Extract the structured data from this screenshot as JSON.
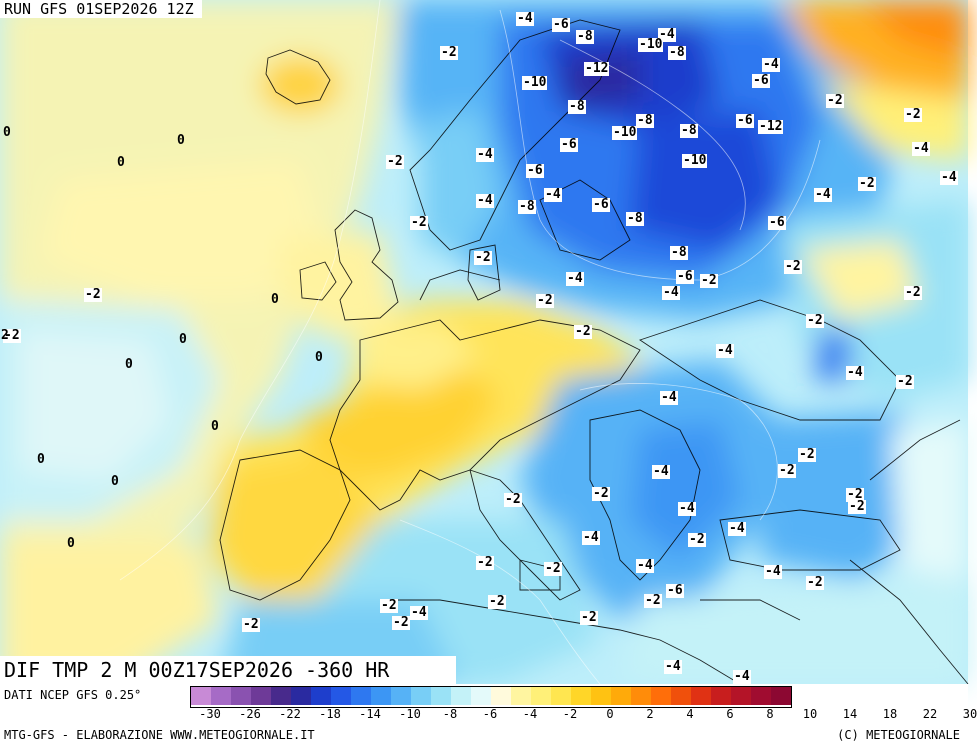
{
  "header": {
    "run": "RUN GFS 01SEP2026 12Z"
  },
  "title": "DIF TMP 2 M 00Z17SEP2026 -360 HR",
  "footer": {
    "data_source": "DATI NCEP GFS 0.25°",
    "credit_left": "MTG-GFS - ELABORAZIONE WWW.METEOGIORNALE.IT",
    "credit_right": "(C) METEOGIORNALE"
  },
  "legend": {
    "colors": [
      "#c88ad6",
      "#a66bc6",
      "#8a52b0",
      "#6e3a98",
      "#482a8c",
      "#2a2aa0",
      "#1e3ecc",
      "#2458e6",
      "#2e78f0",
      "#3c96f4",
      "#56b2f6",
      "#78cef6",
      "#9ae2f6",
      "#c4f2f8",
      "#e4fafa",
      "#fffadc",
      "#fff5a0",
      "#fff078",
      "#ffe650",
      "#ffd628",
      "#ffc212",
      "#ffaa0a",
      "#ff8c0a",
      "#ff6e0a",
      "#f0500c",
      "#e03214",
      "#c81e1e",
      "#b41428",
      "#a00c30",
      "#8c0832"
    ],
    "ticks": [
      "-30",
      "-26",
      "-22",
      "-18",
      "-14",
      "-10",
      "-8",
      "-6",
      "-4",
      "-2",
      "0",
      "2",
      "4",
      "6",
      "8",
      "10",
      "14",
      "18",
      "22",
      "30"
    ]
  },
  "contour_labels": [
    {
      "t": "-4"
    },
    {
      "t": "-6"
    },
    {
      "t": "-8"
    },
    {
      "t": "-4"
    },
    {
      "t": "-10"
    },
    {
      "t": "-8"
    },
    {
      "t": "-2"
    },
    {
      "t": "-12"
    },
    {
      "t": "-10"
    },
    {
      "t": "-4"
    },
    {
      "t": "-6"
    },
    {
      "t": "-2"
    },
    {
      "t": "-6"
    },
    {
      "t": "-8"
    },
    {
      "t": "-8"
    },
    {
      "t": "-10"
    },
    {
      "t": "-12"
    },
    {
      "t": "-8"
    },
    {
      "t": "-2"
    },
    {
      "t": "-6"
    },
    {
      "t": "-4"
    },
    {
      "t": "-2"
    },
    {
      "t": "-10"
    },
    {
      "t": "-4"
    },
    {
      "t": "-6"
    },
    {
      "t": "-2"
    },
    {
      "t": "-4"
    },
    {
      "t": "-4"
    },
    {
      "t": "-8"
    },
    {
      "t": "-6"
    },
    {
      "t": "-4"
    },
    {
      "t": "-4"
    },
    {
      "t": "-8"
    },
    {
      "t": "-6"
    },
    {
      "t": "-2"
    },
    {
      "t": "-8"
    },
    {
      "t": "-2"
    },
    {
      "t": "-2"
    },
    {
      "t": "-6"
    },
    {
      "t": "-4"
    },
    {
      "t": "-2"
    },
    {
      "t": "-4"
    },
    {
      "t": "-2"
    },
    {
      "t": "-2"
    },
    {
      "t": "-2"
    },
    {
      "t": "-2"
    },
    {
      "t": "-4"
    },
    {
      "t": "-4"
    },
    {
      "t": "-2"
    },
    {
      "t": "-4"
    },
    {
      "t": "-2"
    },
    {
      "t": "-4"
    },
    {
      "t": "-2"
    },
    {
      "t": "-2"
    },
    {
      "t": "-2"
    },
    {
      "t": "-4"
    },
    {
      "t": "-2"
    },
    {
      "t": "-4"
    },
    {
      "t": "-4"
    },
    {
      "t": "-2"
    },
    {
      "t": "-2"
    },
    {
      "t": "-2"
    },
    {
      "t": "-4"
    },
    {
      "t": "-4"
    },
    {
      "t": "-2"
    },
    {
      "t": "-6"
    },
    {
      "t": "-2"
    },
    {
      "t": "-2"
    },
    {
      "t": "-2"
    },
    {
      "t": "-4"
    },
    {
      "t": "-2"
    },
    {
      "t": "-2"
    },
    {
      "t": "-2"
    },
    {
      "t": "-4"
    },
    {
      "t": "-2"
    },
    {
      "t": "-4"
    },
    {
      "t": "-2"
    },
    {
      "t": "-2"
    },
    {
      "t": "0"
    },
    {
      "t": "0"
    },
    {
      "t": "0"
    },
    {
      "t": "0"
    },
    {
      "t": "0"
    },
    {
      "t": "0"
    },
    {
      "t": "0"
    },
    {
      "t": "0"
    },
    {
      "t": "0"
    },
    {
      "t": "0"
    },
    {
      "t": "0"
    },
    {
      "t": "2"
    }
  ]
}
